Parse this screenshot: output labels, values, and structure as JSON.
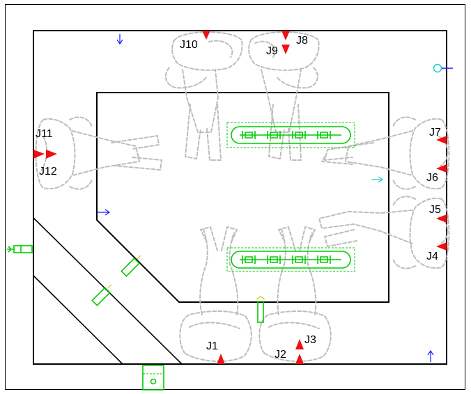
{
  "joint_labels": {
    "j1": "J1",
    "j2": "J2",
    "j3": "J3",
    "j4": "J4",
    "j5": "J5",
    "j6": "J6",
    "j7": "J7",
    "j8": "J8",
    "j9": "J9",
    "j10": "J10",
    "j11": "J11",
    "j12": "J12"
  },
  "colors": {
    "marker": "#ee1111",
    "sensor": "#00cc00",
    "guide": "#1a1aff",
    "robot_outline": "#bdbdbd",
    "cyan_port": "#22cccc"
  }
}
